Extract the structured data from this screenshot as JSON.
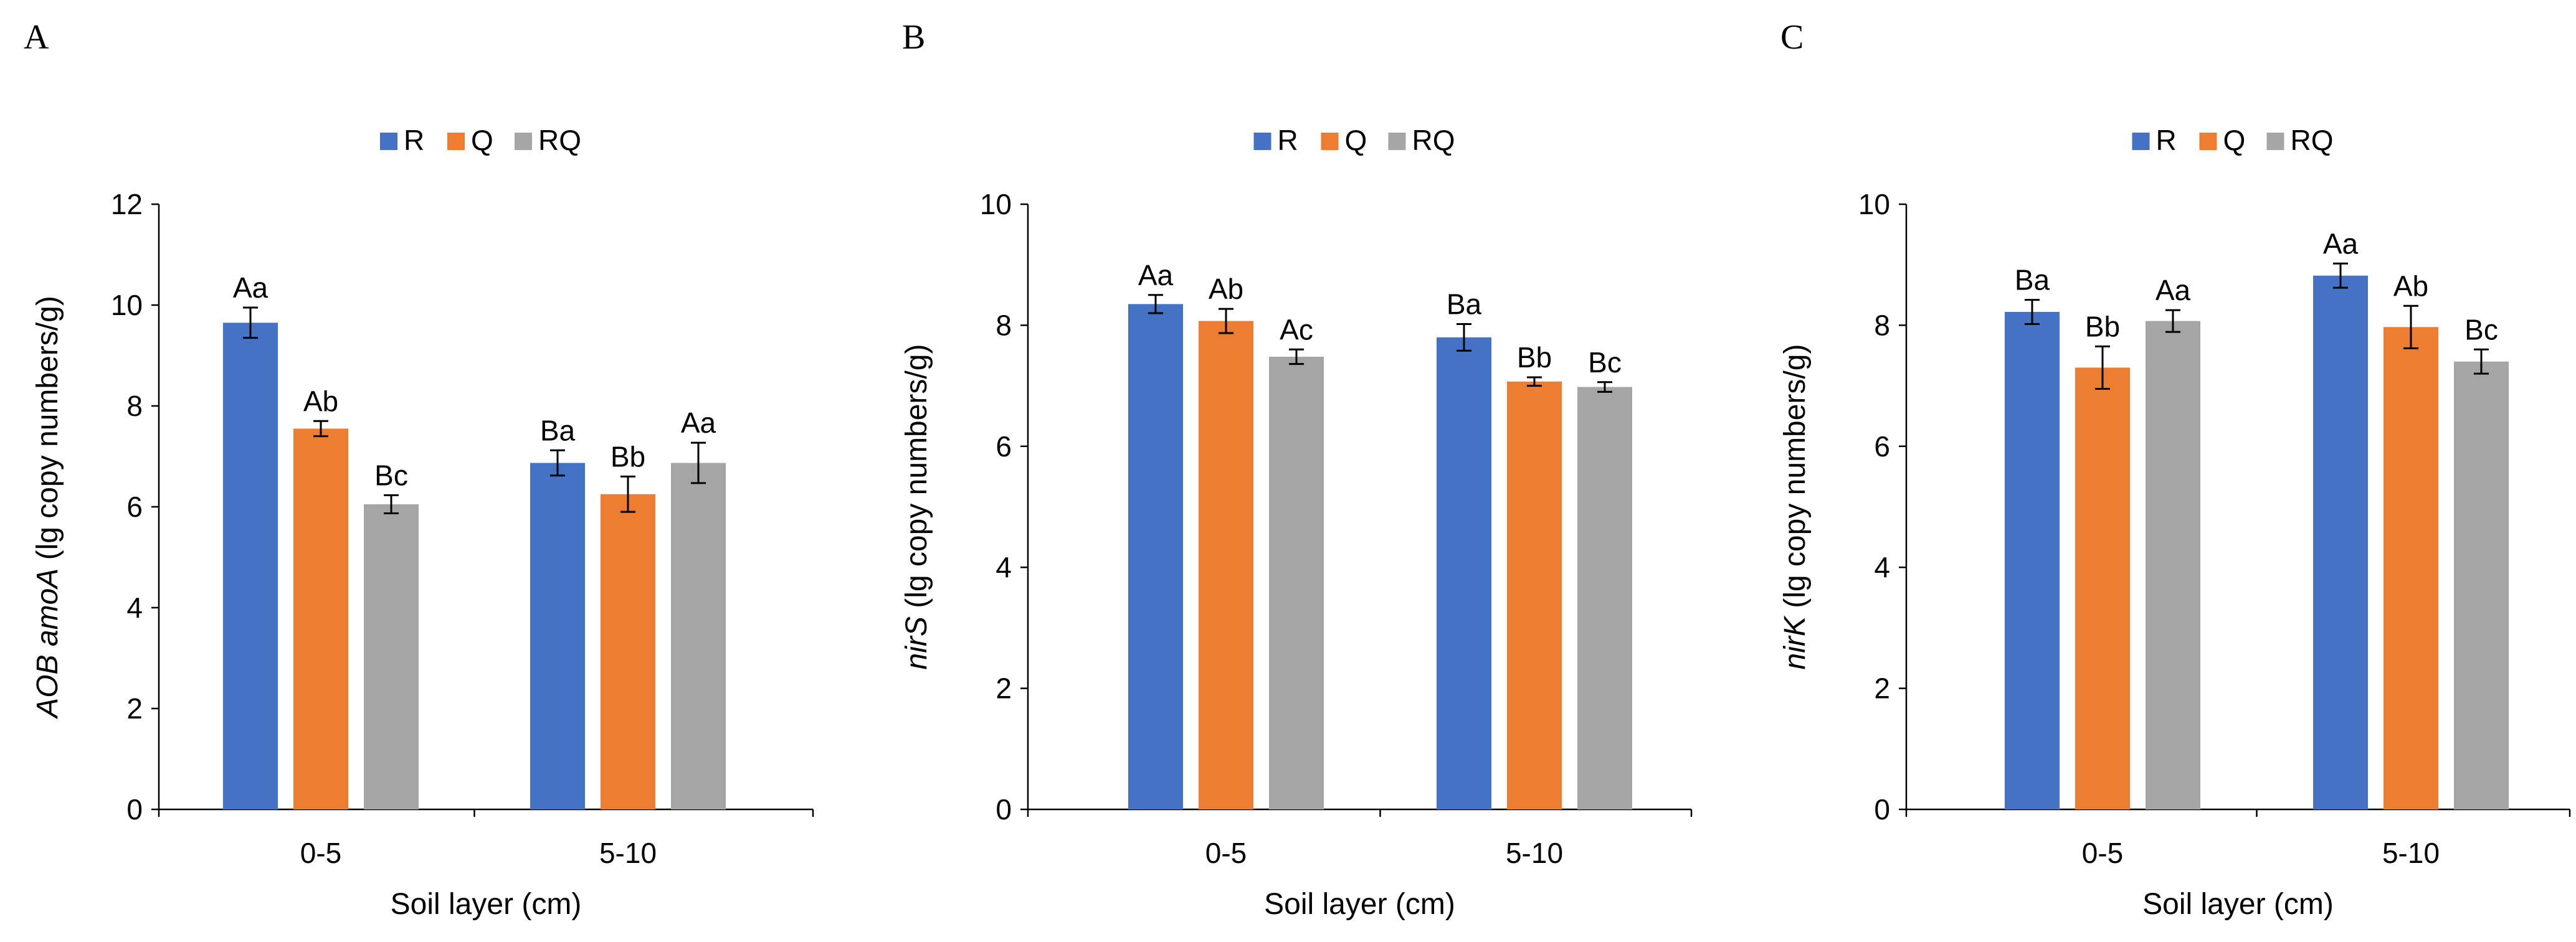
{
  "figure": {
    "panels": [
      "A",
      "B",
      "C"
    ]
  },
  "colors": {
    "R": "#4472c4",
    "Q": "#ed7d31",
    "RQ": "#a5a5a5",
    "axis": "#000000",
    "error_bar": "#000000"
  },
  "chart_data": [
    {
      "panel": "A",
      "type": "bar",
      "title": "",
      "xlabel": "Soil layer (cm)",
      "ylabel_italic": "AOB amoA",
      "ylabel_rest": " (lg copy numbers/g)",
      "ylim": [
        0,
        12
      ],
      "yticks": [
        0,
        2,
        4,
        6,
        8,
        10,
        12
      ],
      "categories": [
        "0-5",
        "5-10"
      ],
      "legend_position": "top-center",
      "grid": false,
      "series": [
        {
          "name": "R",
          "color": "#4472c4",
          "values": [
            9.65,
            6.87
          ],
          "errors": [
            0.3,
            0.25
          ],
          "labels": [
            "Aa",
            "Ba"
          ]
        },
        {
          "name": "Q",
          "color": "#ed7d31",
          "values": [
            7.55,
            6.25
          ],
          "errors": [
            0.15,
            0.35
          ],
          "labels": [
            "Ab",
            "Bb"
          ]
        },
        {
          "name": "RQ",
          "color": "#a5a5a5",
          "values": [
            6.05,
            6.87
          ],
          "errors": [
            0.18,
            0.4
          ],
          "labels": [
            "Bc",
            "Aa"
          ]
        }
      ]
    },
    {
      "panel": "B",
      "type": "bar",
      "title": "",
      "xlabel": "Soil layer (cm)",
      "ylabel_italic": "nirS",
      "ylabel_rest": " (lg copy numbers/g)",
      "ylim": [
        0,
        10
      ],
      "yticks": [
        0,
        2,
        4,
        6,
        8,
        10
      ],
      "categories": [
        "0-5",
        "5-10"
      ],
      "legend_position": "top-center",
      "grid": false,
      "series": [
        {
          "name": "R",
          "color": "#4472c4",
          "values": [
            8.35,
            7.8
          ],
          "errors": [
            0.15,
            0.22
          ],
          "labels": [
            "Aa",
            "Ba"
          ]
        },
        {
          "name": "Q",
          "color": "#ed7d31",
          "values": [
            8.07,
            7.07
          ],
          "errors": [
            0.2,
            0.07
          ],
          "labels": [
            "Ab",
            "Bb"
          ]
        },
        {
          "name": "RQ",
          "color": "#a5a5a5",
          "values": [
            7.48,
            6.98
          ],
          "errors": [
            0.12,
            0.08
          ],
          "labels": [
            "Ac",
            "Bc"
          ]
        }
      ]
    },
    {
      "panel": "C",
      "type": "bar",
      "title": "",
      "xlabel": "Soil layer (cm)",
      "ylabel_italic": "nirK",
      "ylabel_rest": " (lg copy numbers/g)",
      "ylim": [
        0,
        10
      ],
      "yticks": [
        0,
        2,
        4,
        6,
        8,
        10
      ],
      "categories": [
        "0-5",
        "5-10"
      ],
      "legend_position": "top-center",
      "grid": false,
      "series": [
        {
          "name": "R",
          "color": "#4472c4",
          "values": [
            8.22,
            8.82
          ],
          "errors": [
            0.2,
            0.2
          ],
          "labels": [
            "Ba",
            "Aa"
          ]
        },
        {
          "name": "Q",
          "color": "#ed7d31",
          "values": [
            7.3,
            7.97
          ],
          "errors": [
            0.35,
            0.35
          ],
          "labels": [
            "Bb",
            "Ab"
          ]
        },
        {
          "name": "RQ",
          "color": "#a5a5a5",
          "values": [
            8.07,
            7.4
          ],
          "errors": [
            0.18,
            0.2
          ],
          "labels": [
            "Aa",
            "Bc"
          ]
        }
      ]
    }
  ]
}
